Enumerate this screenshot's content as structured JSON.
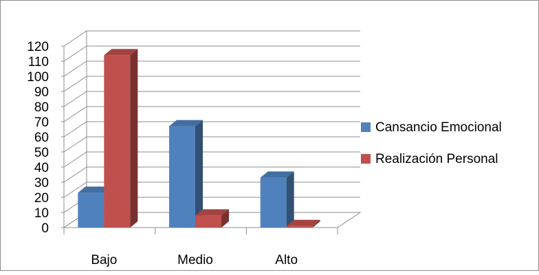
{
  "chart_data": {
    "type": "bar",
    "categories": [
      "Bajo",
      "Medio",
      "Alto"
    ],
    "series": [
      {
        "name": "Cansancio Emocional",
        "values": [
          23,
          67,
          33
        ],
        "color": "#4f81bd"
      },
      {
        "name": "Realización Personal",
        "values": [
          114,
          8,
          1
        ],
        "color": "#c0504d"
      }
    ],
    "yticks": [
      "0",
      "10",
      "20",
      "30",
      "40",
      "50",
      "60",
      "70",
      "80",
      "90",
      "100",
      "110",
      "120"
    ],
    "ylim": [
      0,
      120
    ],
    "grid": true,
    "legend": "right",
    "style": "3d-column"
  }
}
